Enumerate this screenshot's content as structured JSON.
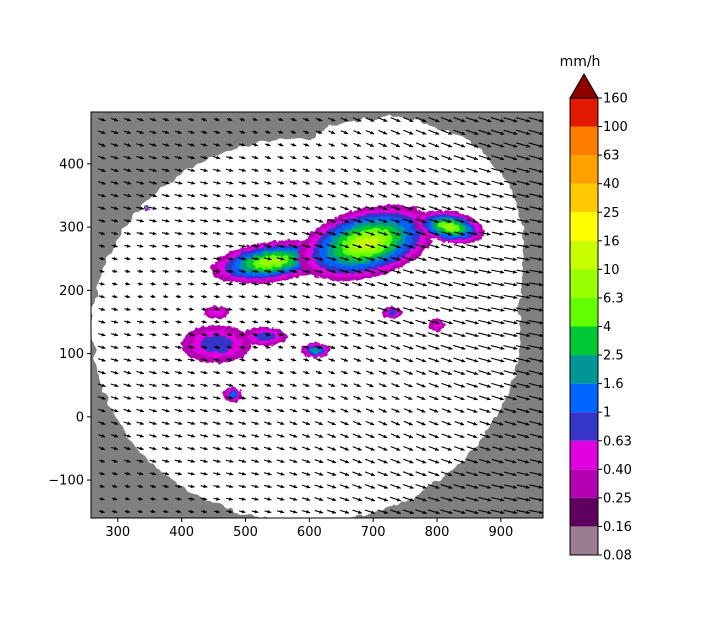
{
  "chart_data": [
    {
      "type": "heatmap",
      "title": "",
      "xlabel": "",
      "ylabel": "",
      "xlim": [
        258,
        966
      ],
      "ylim": [
        -160,
        482
      ],
      "xticks": [
        300,
        400,
        500,
        600,
        700,
        800,
        900
      ],
      "yticks": [
        -100,
        0,
        100,
        200,
        300,
        400
      ],
      "grid": false,
      "background_color": "#808080",
      "radar_coverage_color": "#ffffff",
      "vector_overlay": "motion-field arrows (quiver)",
      "precip_cells": [
        {
          "cx": 540,
          "cy": 245,
          "rx": 95,
          "ry": 32,
          "rot": -8,
          "level": 9
        },
        {
          "cx": 690,
          "cy": 275,
          "rx": 110,
          "ry": 55,
          "rot": -15,
          "level": 10
        },
        {
          "cx": 820,
          "cy": 300,
          "rx": 55,
          "ry": 25,
          "rot": 10,
          "level": 9
        },
        {
          "cx": 455,
          "cy": 115,
          "rx": 55,
          "ry": 30,
          "rot": 0,
          "level": 4
        },
        {
          "cx": 530,
          "cy": 127,
          "rx": 35,
          "ry": 15,
          "rot": 0,
          "level": 4
        },
        {
          "cx": 610,
          "cy": 105,
          "rx": 22,
          "ry": 12,
          "rot": 0,
          "level": 6
        },
        {
          "cx": 480,
          "cy": 35,
          "rx": 15,
          "ry": 12,
          "rot": 0,
          "level": 5
        },
        {
          "cx": 345,
          "cy": 330,
          "rx": 5,
          "ry": 4,
          "rot": 0,
          "level": 7
        },
        {
          "cx": 455,
          "cy": 165,
          "rx": 20,
          "ry": 10,
          "rot": 0,
          "level": 3
        },
        {
          "cx": 730,
          "cy": 165,
          "rx": 15,
          "ry": 10,
          "rot": 0,
          "level": 4
        },
        {
          "cx": 800,
          "cy": 145,
          "rx": 12,
          "ry": 10,
          "rot": 0,
          "level": 3
        }
      ]
    },
    {
      "type": "colorbar",
      "unit": "mm/h",
      "extend": "max",
      "boundaries": [
        "0.08",
        "0.16",
        "0.25",
        "0.40",
        "0.63",
        "1",
        "1.6",
        "2.5",
        "4",
        "6.3",
        "10",
        "16",
        "25",
        "40",
        "63",
        "100",
        "160"
      ],
      "colors": [
        "#9b7d92",
        "#5e005e",
        "#b200b2",
        "#e000e0",
        "#3535c8",
        "#0064ff",
        "#009696",
        "#00c832",
        "#64ff00",
        "#96ff00",
        "#c8ff00",
        "#ffff00",
        "#ffc800",
        "#ffa000",
        "#ff7d00",
        "#e11900"
      ],
      "extend_color": "#8c0000"
    }
  ]
}
